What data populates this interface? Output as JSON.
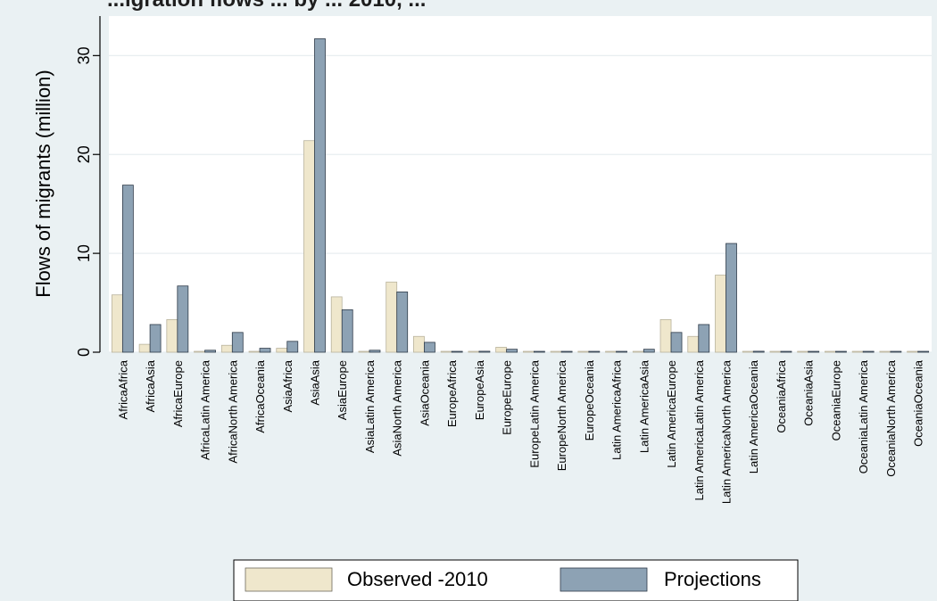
{
  "chart_data": {
    "type": "bar",
    "title": "...igration flows ... by ... 2010, ...",
    "ylabel": "Flows of migrants (million)",
    "xlabel": "",
    "ylim": [
      0,
      34
    ],
    "yticks": [
      0,
      10,
      20,
      30
    ],
    "grid": true,
    "legend_position": "bottom",
    "categories": [
      "AfricaAfrica",
      "AfricaAsia",
      "AfricaEurope",
      "AfricaLatin America",
      "AfricaNorth America",
      "AfricaOceania",
      "AsiaAfrica",
      "AsiaAsia",
      "AsiaEurope",
      "AsiaLatin America",
      "AsiaNorth America",
      "AsiaOceania",
      "EuropeAfrica",
      "EuropeAsia",
      "EuropeEurope",
      "EuropeLatin America",
      "EuropeNorth America",
      "EuropeOceania",
      "Latin AmericaAfrica",
      "Latin AmericaAsia",
      "Latin AmericaEurope",
      "Latin AmericaLatin America",
      "Latin AmericaNorth America",
      "Latin AmericaOceania",
      "OceaniaAfrica",
      "OceaniaAsia",
      "OceaniaEurope",
      "OceaniaLatin America",
      "OceaniaNorth America",
      "OceaniaOceania"
    ],
    "series": [
      {
        "name": "Observed -2010",
        "color": "#efe7cc",
        "values": [
          5.8,
          0.8,
          3.3,
          0.05,
          0.7,
          0.05,
          0.4,
          21.4,
          5.6,
          0.05,
          7.1,
          1.6,
          0.05,
          0.05,
          0.5,
          0.05,
          0.05,
          0.05,
          0.05,
          0.05,
          3.3,
          1.6,
          7.8,
          0.05,
          0.05,
          0.05,
          0.05,
          0.05,
          0.05,
          0.05
        ]
      },
      {
        "name": "Projections",
        "color": "#8da2b4",
        "values": [
          16.9,
          2.8,
          6.7,
          0.2,
          2.0,
          0.4,
          1.1,
          31.7,
          4.3,
          0.2,
          6.1,
          1.0,
          0.05,
          0.1,
          0.3,
          0.05,
          0.05,
          0.05,
          0.05,
          0.3,
          2.0,
          2.8,
          11.0,
          0.1,
          0.05,
          0.05,
          0.05,
          0.05,
          0.05,
          0.05
        ]
      }
    ]
  }
}
